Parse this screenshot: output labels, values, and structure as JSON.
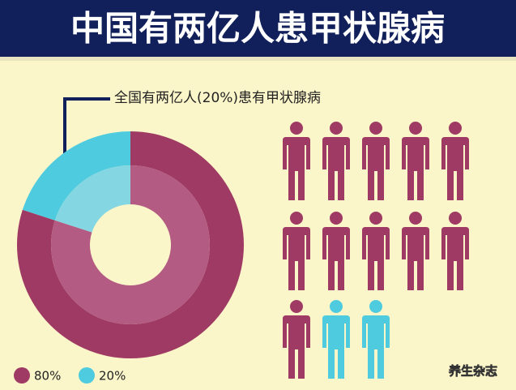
{
  "chart_data": {
    "type": "pie",
    "title": "中国有两亿人患甲状腺病",
    "annotation": "全国有两亿人(20%)患有甲状腺病",
    "values": [
      80,
      20
    ],
    "value_labels": [
      "80%",
      "20%"
    ],
    "colors": [
      "#9e3a63",
      "#4ecbdf"
    ],
    "inner_colors": [
      "#b35b82",
      "#84d7e2"
    ]
  },
  "watermark": "养生杂志"
}
